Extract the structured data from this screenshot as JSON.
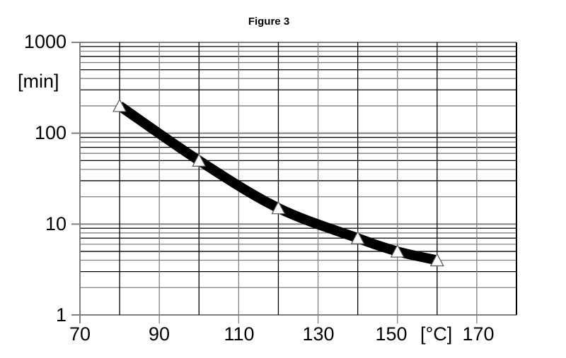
{
  "chart_data": {
    "type": "line",
    "title": "Figure 3",
    "xlabel": "[°C]",
    "ylabel": "[min]",
    "x_scale": "linear",
    "y_scale": "log",
    "xlim": [
      70,
      180
    ],
    "ylim": [
      1,
      1000
    ],
    "x_ticks": [
      70,
      90,
      110,
      130,
      150,
      170
    ],
    "x_tick_labels": [
      "70",
      "90",
      "110",
      "130",
      "150",
      "170"
    ],
    "x_gridlines": [
      70,
      80,
      90,
      100,
      110,
      120,
      130,
      140,
      150,
      160,
      170,
      180
    ],
    "y_ticks": [
      1,
      10,
      100,
      1000
    ],
    "y_tick_labels": [
      "1",
      "10",
      "100",
      "1000"
    ],
    "grid": true,
    "legend": null,
    "series": [
      {
        "name": "curve",
        "marker": "triangle",
        "line_style": "thick black",
        "x": [
          80,
          100,
          120,
          140,
          150,
          160
        ],
        "y": [
          200,
          50,
          15,
          7,
          5,
          4
        ]
      }
    ]
  },
  "style": {
    "line_color": "#000000",
    "grid_color": "#000000",
    "grid_alt_color": "#808080",
    "marker_fill": "#ffffff",
    "marker_stroke": "#555555"
  }
}
